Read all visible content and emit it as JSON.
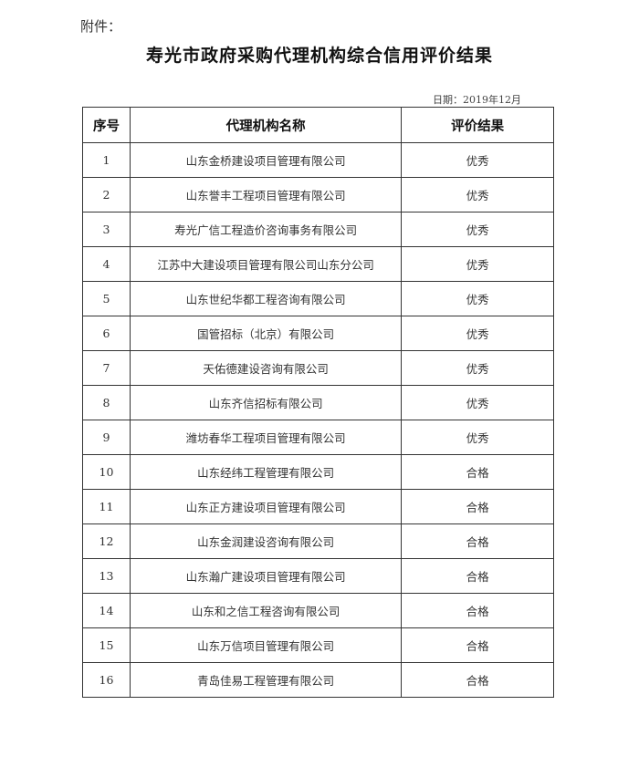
{
  "attachment_label": "附件：",
  "title": "寿光市政府采购代理机构综合信用评价结果",
  "date": "日期：2019年12月",
  "table": {
    "headers": [
      "序号",
      "代理机构名称",
      "评价结果"
    ],
    "rows": [
      [
        "1",
        "山东金桥建设项目管理有限公司",
        "优秀"
      ],
      [
        "2",
        "山东誉丰工程项目管理有限公司",
        "优秀"
      ],
      [
        "3",
        "寿光广信工程造价咨询事务有限公司",
        "优秀"
      ],
      [
        "4",
        "江苏中大建设项目管理有限公司山东分公司",
        "优秀"
      ],
      [
        "5",
        "山东世纪华都工程咨询有限公司",
        "优秀"
      ],
      [
        "6",
        "国管招标（北京）有限公司",
        "优秀"
      ],
      [
        "7",
        "天佑德建设咨询有限公司",
        "优秀"
      ],
      [
        "8",
        "山东齐信招标有限公司",
        "优秀"
      ],
      [
        "9",
        "潍坊春华工程项目管理有限公司",
        "优秀"
      ],
      [
        "10",
        "山东经纬工程管理有限公司",
        "合格"
      ],
      [
        "11",
        "山东正方建设项目管理有限公司",
        "合格"
      ],
      [
        "12",
        "山东金润建设咨询有限公司",
        "合格"
      ],
      [
        "13",
        "山东瀚广建设项目管理有限公司",
        "合格"
      ],
      [
        "14",
        "山东和之信工程咨询有限公司",
        "合格"
      ],
      [
        "15",
        "山东万信项目管理有限公司",
        "合格"
      ],
      [
        "16",
        "青岛佳易工程管理有限公司",
        "合格"
      ]
    ]
  }
}
